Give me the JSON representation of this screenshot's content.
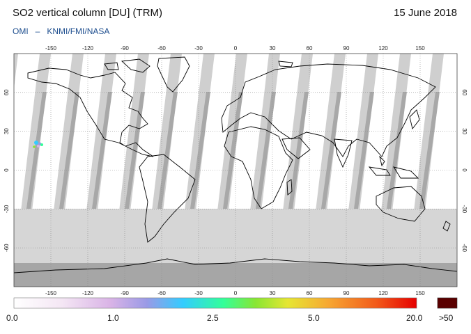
{
  "header": {
    "title": "SO2 vertical column [DU] (TRM)",
    "date": "15 June 2018",
    "source": [
      "OMI",
      "KNMI/FMI/NASA"
    ]
  },
  "map": {
    "projection": "equirectangular",
    "lon_ticks": [
      "-150",
      "-120",
      "-90",
      "-60",
      "-30",
      "0",
      "30",
      "60",
      "90",
      "120",
      "150"
    ],
    "lat_ticks": [
      "60",
      "30",
      "0",
      "-30",
      "-60"
    ],
    "colors": {
      "ocean": "#ffffff",
      "swath_gap": "#cfcfcf",
      "swath_overlap": "#a8a8a8",
      "polar_night": "#a6a6a6",
      "coast": "#000000",
      "grid": "#8a8a8a"
    }
  },
  "colorbar": {
    "labels": [
      "0.0",
      "1.0",
      "2.5",
      "5.0",
      "20.0"
    ],
    "overflow_label": ">50",
    "overflow_color": "#5a0000"
  }
}
